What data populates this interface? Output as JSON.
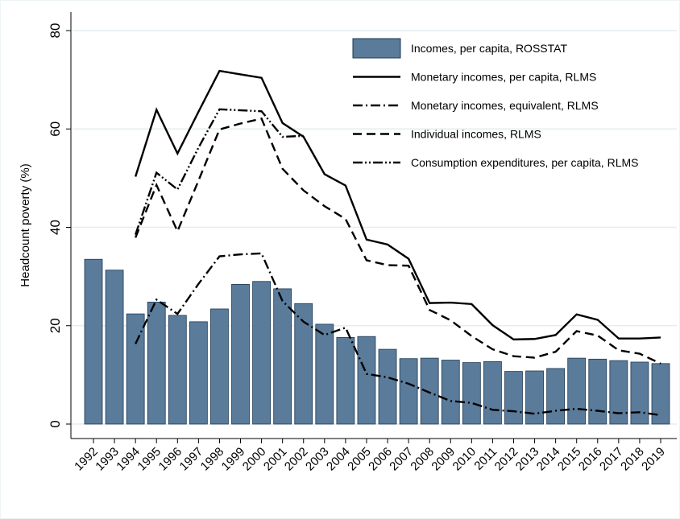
{
  "chart_data": {
    "type": "combo",
    "y_label": "Headcount poverty (%)",
    "categories": [
      "1992",
      "1993",
      "1994",
      "1995",
      "1996",
      "1997",
      "1998",
      "1999",
      "2000",
      "2001",
      "2002",
      "2003",
      "2004",
      "2005",
      "2006",
      "2007",
      "2008",
      "2009",
      "2010",
      "2011",
      "2012",
      "2013",
      "2014",
      "2015",
      "2016",
      "2017",
      "2018",
      "2019"
    ],
    "ylim": [
      0,
      80
    ],
    "yticks": [
      0,
      20,
      40,
      60,
      80
    ],
    "grid": true,
    "legend": "top-right",
    "series": [
      {
        "name": "Incomes, per capita, ROSSTAT",
        "type": "bar",
        "color": "#5b7b9a",
        "values": [
          33.5,
          31.3,
          22.4,
          24.8,
          22.1,
          20.8,
          23.4,
          28.4,
          29.0,
          27.5,
          24.5,
          20.3,
          17.6,
          17.8,
          15.2,
          13.3,
          13.4,
          13.0,
          12.5,
          12.7,
          10.7,
          10.8,
          11.3,
          13.4,
          13.2,
          12.9,
          12.6,
          12.3
        ]
      },
      {
        "name": "Monetary incomes, per capita, RLMS",
        "type": "line",
        "dash": "solid",
        "color": "#000000",
        "values": [
          null,
          null,
          50.3,
          63.9,
          55.0,
          63.5,
          71.8,
          71.1,
          70.4,
          61.2,
          58.4,
          50.8,
          48.5,
          37.5,
          36.5,
          33.6,
          24.6,
          24.7,
          24.4,
          20.1,
          17.2,
          17.3,
          18.1,
          22.3,
          21.2,
          17.4,
          17.4,
          17.6
        ]
      },
      {
        "name": "Monetary incomes, equivalent, RLMS",
        "type": "line",
        "dash": "dashdot",
        "color": "#000000",
        "values": [
          null,
          null,
          16.3,
          25.3,
          22.4,
          28.5,
          34.1,
          34.5,
          34.7,
          25.0,
          20.8,
          18.1,
          19.6,
          10.2,
          9.5,
          8.2,
          6.4,
          4.7,
          4.3,
          2.9,
          2.6,
          2.1,
          2.7,
          3.1,
          2.7,
          2.2,
          2.4,
          1.8
        ]
      },
      {
        "name": "Individual incomes, RLMS",
        "type": "line",
        "dash": "dashed",
        "color": "#000000",
        "values": [
          null,
          null,
          37.9,
          48.6,
          39.2,
          49.5,
          59.9,
          61.1,
          62.1,
          51.9,
          47.5,
          44.3,
          41.7,
          33.3,
          32.3,
          32.2,
          23.2,
          21.1,
          17.9,
          15.2,
          13.8,
          13.5,
          14.7,
          18.9,
          18.0,
          15.0,
          14.3,
          12.3
        ]
      },
      {
        "name": "Consumption expenditures, per capita, RLMS",
        "type": "line",
        "dash": "dashdotdot",
        "color": "#000000",
        "values": [
          null,
          null,
          38.5,
          51.1,
          47.7,
          56.2,
          64.0,
          63.8,
          63.6,
          58.4,
          58.6,
          null,
          null,
          null,
          null,
          null,
          null,
          null,
          null,
          null,
          null,
          null,
          null,
          null,
          null,
          null,
          null,
          null
        ]
      }
    ]
  }
}
